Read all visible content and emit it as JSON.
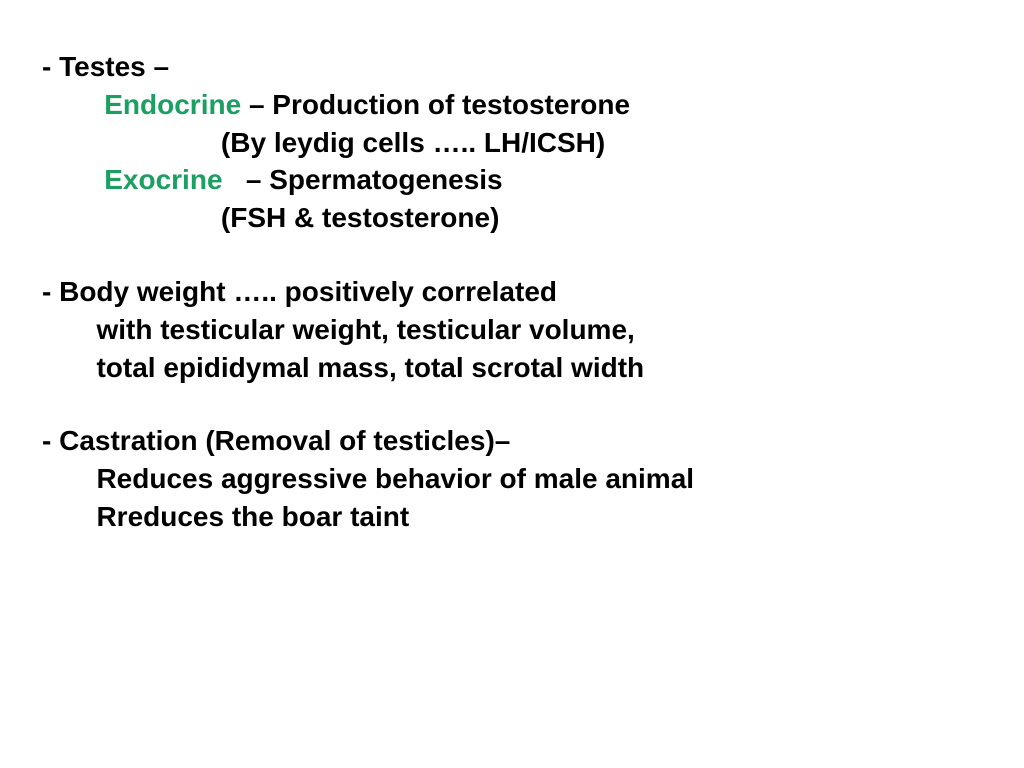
{
  "colors": {
    "text": "#000000",
    "accent": "#1ba061",
    "background": "#ffffff"
  },
  "typography": {
    "font_family": "Arial, sans-serif",
    "font_size_pt": 21,
    "font_weight": "bold",
    "line_height": 1.35
  },
  "section1": {
    "bullet": "- Testes –",
    "endo_label": "Endocrine ",
    "endo_rest": "– Production of testosterone",
    "endo_sub": "                       (By leydig cells ….. LH/ICSH)",
    "exo_label": "Exocrine   ",
    "exo_rest": "– Spermatogenesis",
    "exo_sub": "                       (FSH & testosterone)"
  },
  "section2": {
    "line1": "- Body weight ….. positively correlated",
    "line2": "       with testicular weight, testicular volume,",
    "line3": "       total epididymal mass, total scrotal width"
  },
  "section3": {
    "line1": "- Castration (Removal of testicles)–",
    "line2": "       Reduces aggressive behavior of male animal",
    "line3": "       Rreduces the boar taint"
  }
}
